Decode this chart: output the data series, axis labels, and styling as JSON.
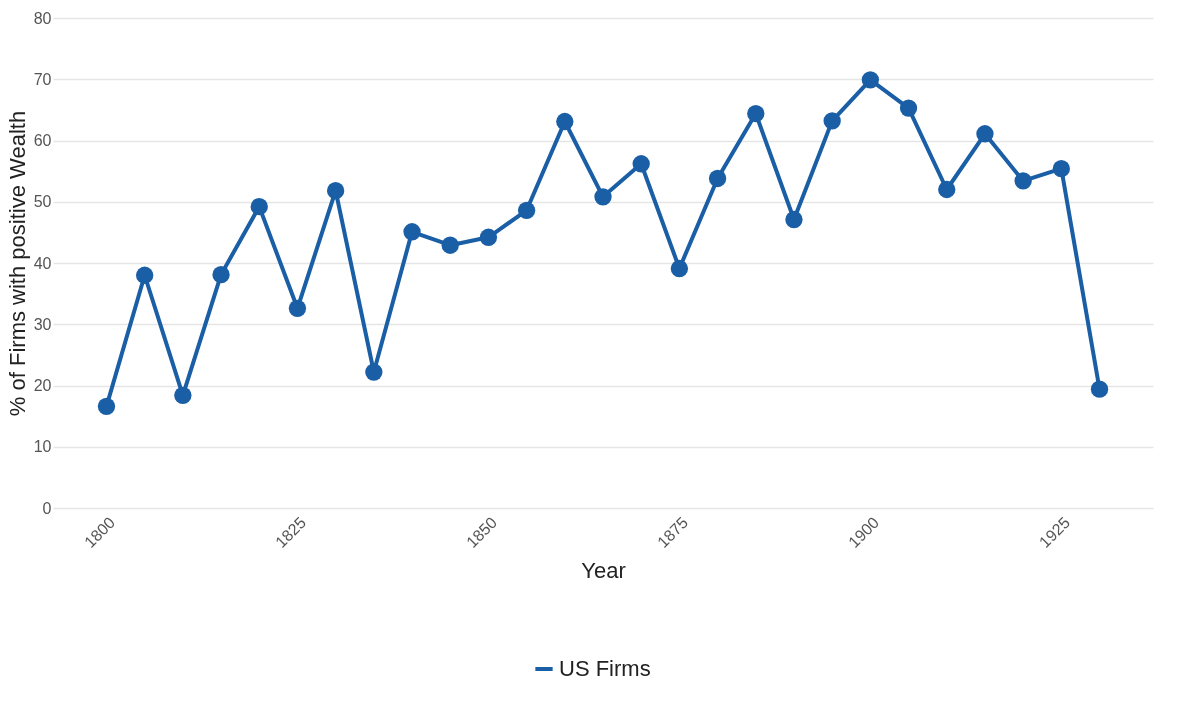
{
  "chart_data": {
    "type": "line",
    "xlabel": "Year",
    "ylabel": "% of Firms with positive Wealth",
    "x": [
      1800,
      1805,
      1810,
      1815,
      1820,
      1825,
      1830,
      1835,
      1840,
      1845,
      1850,
      1855,
      1860,
      1865,
      1870,
      1875,
      1880,
      1885,
      1890,
      1895,
      1900,
      1905,
      1910,
      1915,
      1920,
      1925,
      1930
    ],
    "series": [
      {
        "name": "US Firms",
        "color": "#1a5ea6",
        "values": [
          16.6,
          38.0,
          18.4,
          38.1,
          49.2,
          32.6,
          51.8,
          22.2,
          45.1,
          42.9,
          44.2,
          48.6,
          63.1,
          50.8,
          56.2,
          39.1,
          53.8,
          64.4,
          47.1,
          63.2,
          69.9,
          65.3,
          52.0,
          61.1,
          53.4,
          55.4,
          19.4
        ]
      }
    ],
    "xlim": [
      1793,
      1937
    ],
    "xticks": [
      1800,
      1825,
      1850,
      1875,
      1900,
      1925
    ],
    "ylim": [
      0,
      80
    ],
    "yticks": [
      0,
      10,
      20,
      30,
      40,
      50,
      60,
      70,
      80
    ],
    "grid": "y",
    "legend": "bottom",
    "marker": "circle",
    "line_style": "solid"
  }
}
